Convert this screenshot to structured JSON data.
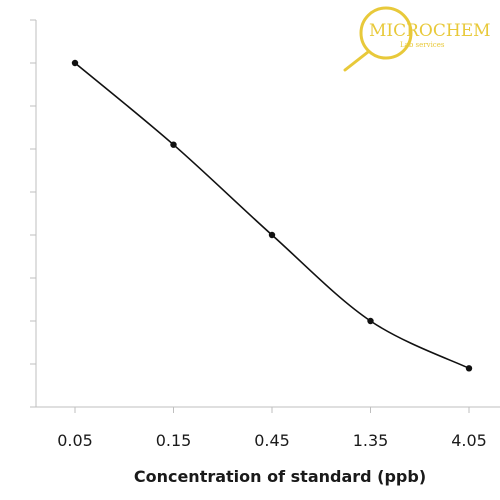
{
  "chart_data": {
    "type": "line",
    "categories": [
      "0.05",
      "0.15",
      "0.45",
      "1.35",
      "4.05"
    ],
    "series": [
      {
        "values": [
          8.0,
          6.1,
          4.0,
          2.0,
          0.9
        ]
      }
    ],
    "xlabel": "Concentration of standard (ppb)",
    "ylabel": "",
    "ylim": [
      0,
      9
    ],
    "grid": false,
    "legend": "none"
  },
  "logo": {
    "name": "MICROCHEM",
    "tagline": "Lab services"
  },
  "colors": {
    "line": "#111111",
    "axis": "#bfbfbf",
    "logo": "#e8c93a"
  }
}
